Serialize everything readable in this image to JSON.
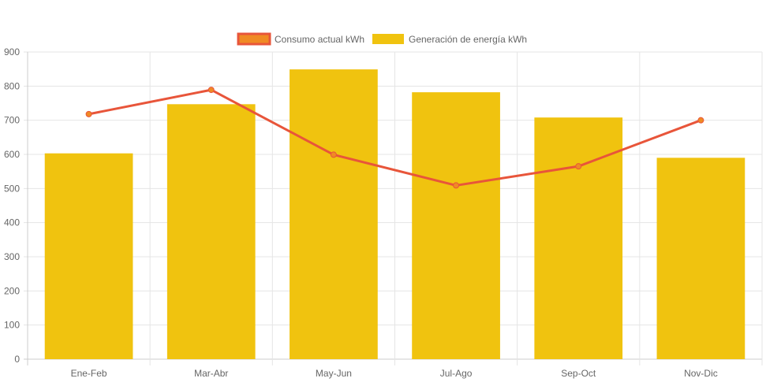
{
  "chart_data": {
    "type": "bar",
    "categories": [
      "Ene-Feb",
      "Mar-Abr",
      "May-Jun",
      "Jul-Ago",
      "Sep-Oct",
      "Nov-Dic"
    ],
    "series": [
      {
        "name": "Consumo actual kWh",
        "type": "line",
        "values": [
          718,
          789,
          599,
          509,
          565,
          700
        ],
        "color": "#e8553a",
        "point_fill": "#f08a24"
      },
      {
        "name": "Generación de energía kWh",
        "type": "bar",
        "values": [
          603,
          747,
          849,
          782,
          708,
          590
        ],
        "color": "#f0c30f"
      }
    ],
    "ylim": [
      0,
      900
    ],
    "yticks": [
      "0",
      "100",
      "200",
      "300",
      "400",
      "500",
      "600",
      "700",
      "800",
      "900"
    ],
    "grid": true,
    "legend_position": "top-center",
    "gridline_color": "#e5e5e5",
    "axis_color": "#cccccc"
  }
}
